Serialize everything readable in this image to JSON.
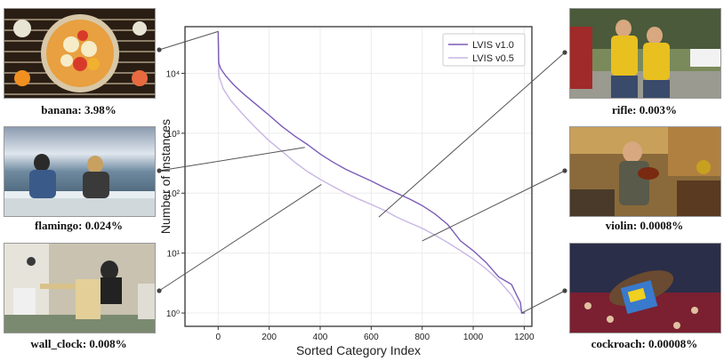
{
  "examples": [
    {
      "id": "banana",
      "caption": "banana: 3.98%"
    },
    {
      "id": "flamingo",
      "caption": "flamingo: 0.024%"
    },
    {
      "id": "wall_clock",
      "caption": "wall_clock: 0.008%"
    },
    {
      "id": "rifle",
      "caption": "rifle: 0.003%"
    },
    {
      "id": "violin",
      "caption": "violin: 0.0008%"
    },
    {
      "id": "cockroach",
      "caption": "cockroach: 0.00008%"
    }
  ],
  "chart_data": {
    "type": "line",
    "xlabel": "Sorted Category Index",
    "ylabel": "Number of Instances",
    "x_ticks": [
      0,
      200,
      400,
      600,
      800,
      1000,
      1200
    ],
    "y_ticks": [
      {
        "value": 1,
        "label": "10⁰"
      },
      {
        "value": 10,
        "label": "10¹"
      },
      {
        "value": 100,
        "label": "10²"
      },
      {
        "value": 1000,
        "label": "10³"
      },
      {
        "value": 10000,
        "label": "10⁴"
      }
    ],
    "y_scale": "log",
    "xlim": [
      -130,
      1230
    ],
    "ylim": [
      0.6,
      60000
    ],
    "grid": true,
    "legend_placement": "top-right",
    "series": [
      {
        "name": "LVIS v1.0",
        "color": "#7b5cb8",
        "points": [
          [
            0,
            50000
          ],
          [
            1,
            30000
          ],
          [
            2,
            15000
          ],
          [
            10,
            12000
          ],
          [
            30,
            9000
          ],
          [
            60,
            6500
          ],
          [
            100,
            4500
          ],
          [
            150,
            3000
          ],
          [
            200,
            2000
          ],
          [
            250,
            1300
          ],
          [
            300,
            900
          ],
          [
            350,
            650
          ],
          [
            400,
            450
          ],
          [
            450,
            330
          ],
          [
            500,
            250
          ],
          [
            550,
            200
          ],
          [
            600,
            160
          ],
          [
            650,
            125
          ],
          [
            700,
            100
          ],
          [
            750,
            80
          ],
          [
            800,
            62
          ],
          [
            850,
            45
          ],
          [
            900,
            30
          ],
          [
            950,
            16
          ],
          [
            1000,
            11
          ],
          [
            1050,
            7
          ],
          [
            1100,
            4
          ],
          [
            1150,
            3
          ],
          [
            1170,
            2
          ],
          [
            1185,
            1.5
          ],
          [
            1190,
            1
          ],
          [
            1203,
            1
          ]
        ]
      },
      {
        "name": "LVIS v0.5",
        "color": "#c8b6e4",
        "points": [
          [
            0,
            40000
          ],
          [
            1,
            20000
          ],
          [
            3,
            9000
          ],
          [
            20,
            5500
          ],
          [
            50,
            3500
          ],
          [
            100,
            2000
          ],
          [
            150,
            1200
          ],
          [
            200,
            750
          ],
          [
            250,
            500
          ],
          [
            300,
            330
          ],
          [
            350,
            230
          ],
          [
            400,
            170
          ],
          [
            450,
            130
          ],
          [
            500,
            100
          ],
          [
            550,
            80
          ],
          [
            600,
            65
          ],
          [
            650,
            52
          ],
          [
            700,
            40
          ],
          [
            750,
            32
          ],
          [
            800,
            26
          ],
          [
            850,
            20
          ],
          [
            900,
            15
          ],
          [
            950,
            11
          ],
          [
            1000,
            8
          ],
          [
            1050,
            5.5
          ],
          [
            1100,
            3.5
          ],
          [
            1150,
            2
          ],
          [
            1180,
            1.2
          ],
          [
            1195,
            1
          ]
        ]
      }
    ],
    "callouts": [
      {
        "example": "banana",
        "x": 0,
        "y": 50000
      },
      {
        "example": "flamingo",
        "x": 340,
        "y": 580
      },
      {
        "example": "wall_clock",
        "x": 405,
        "y": 140
      },
      {
        "example": "rifle",
        "x": 630,
        "y": 40
      },
      {
        "example": "violin",
        "x": 800,
        "y": 16
      },
      {
        "example": "cockroach",
        "x": 1190,
        "y": 1
      }
    ]
  }
}
